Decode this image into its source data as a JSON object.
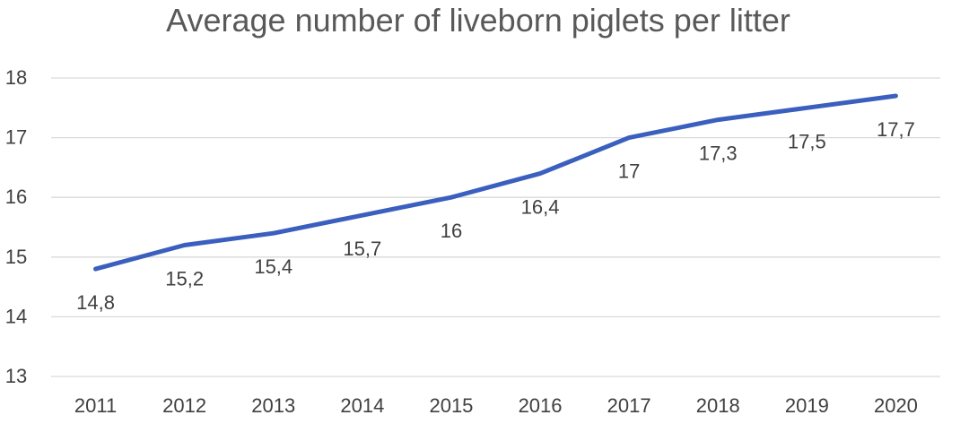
{
  "chart_data": {
    "type": "line",
    "title": "Average number of liveborn piglets per litter",
    "categories": [
      "2011",
      "2012",
      "2013",
      "2014",
      "2015",
      "2016",
      "2017",
      "2018",
      "2019",
      "2020"
    ],
    "series": [
      {
        "values": [
          14.8,
          15.2,
          15.4,
          15.7,
          16,
          16.4,
          17,
          17.3,
          17.5,
          17.7
        ]
      }
    ],
    "data_labels": [
      "14,8",
      "15,2",
      "15,4",
      "15,7",
      "16",
      "16,4",
      "17",
      "17,3",
      "17,5",
      "17,7"
    ],
    "y_ticks": [
      "13",
      "14",
      "15",
      "16",
      "17",
      "18"
    ],
    "ylim": [
      13,
      18
    ],
    "grid": true,
    "legend": "none",
    "colors": {
      "series": "#3a5fbe",
      "grid": "#d9d9d9",
      "text": "#404040",
      "title": "#595959"
    }
  }
}
